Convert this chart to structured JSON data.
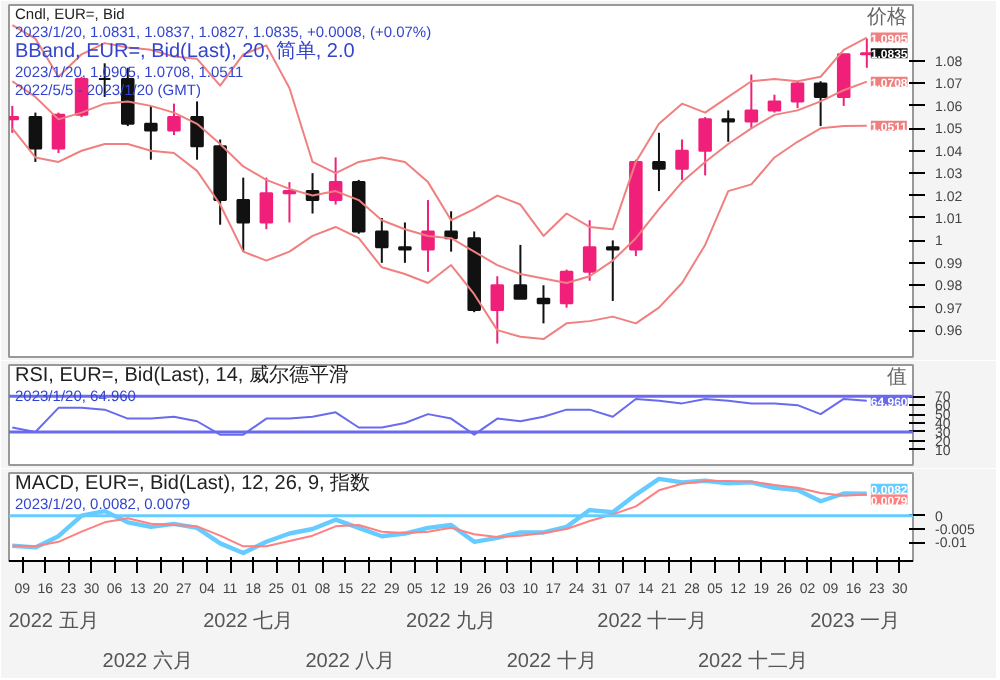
{
  "chart_data": [
    {
      "type": "candlestick",
      "title": "Cndl, EUR=, Bid",
      "subtitle": "2023/1/20, 1.0831, 1.0837, 1.0827, 1.0835, +0.0008, (+0.07%)",
      "ylabel": "价格",
      "annotations": [
        "BBand, EUR=, Bid(Last), 20, 简单, 2.0",
        "2023/1/20, 1.0905, 1.0708, 1.0511",
        "2022/5/5 - 2023/1/20 (GMT)",
        {
          "text": "1.0905",
          "x": "2023-01-20",
          "y": 1.0905
        },
        {
          "text": "1.0835",
          "x": "2023-01-20",
          "y": 1.0835
        },
        {
          "text": "1.0708",
          "x": "2023-01-20",
          "y": 1.0708
        },
        {
          "text": "1.0511",
          "x": "2023-01-20",
          "y": 1.0511
        }
      ],
      "x": [
        "2022-05-06",
        "2022-05-13",
        "2022-05-20",
        "2022-05-27",
        "2022-06-03",
        "2022-06-10",
        "2022-06-17",
        "2022-06-24",
        "2022-07-01",
        "2022-07-08",
        "2022-07-15",
        "2022-07-22",
        "2022-07-29",
        "2022-08-05",
        "2022-08-12",
        "2022-08-19",
        "2022-08-26",
        "2022-09-02",
        "2022-09-09",
        "2022-09-16",
        "2022-09-23",
        "2022-09-30",
        "2022-10-07",
        "2022-10-14",
        "2022-10-21",
        "2022-10-28",
        "2022-11-04",
        "2022-11-11",
        "2022-11-18",
        "2022-11-25",
        "2022-12-02",
        "2022-12-09",
        "2022-12-16",
        "2022-12-23",
        "2022-12-30",
        "2023-01-06",
        "2023-01-13",
        "2023-01-20"
      ],
      "ohlc": [
        [
          1.054,
          1.06,
          1.048,
          1.055
        ],
        [
          1.055,
          1.057,
          1.035,
          1.041
        ],
        [
          1.041,
          1.057,
          1.039,
          1.056
        ],
        [
          1.056,
          1.073,
          1.055,
          1.072
        ],
        [
          1.072,
          1.079,
          1.064,
          1.072
        ],
        [
          1.072,
          1.077,
          1.051,
          1.052
        ],
        [
          1.052,
          1.06,
          1.036,
          1.049
        ],
        [
          1.049,
          1.061,
          1.047,
          1.055
        ],
        [
          1.055,
          1.062,
          1.036,
          1.042
        ],
        [
          1.042,
          1.045,
          1.007,
          1.018
        ],
        [
          1.018,
          1.028,
          0.995,
          1.008
        ],
        [
          1.008,
          1.028,
          1.005,
          1.021
        ],
        [
          1.021,
          1.026,
          1.008,
          1.022
        ],
        [
          1.022,
          1.03,
          1.012,
          1.018
        ],
        [
          1.018,
          1.037,
          1.016,
          1.026
        ],
        [
          1.026,
          1.027,
          1.003,
          1.004
        ],
        [
          1.004,
          1.01,
          0.99,
          0.997
        ],
        [
          0.997,
          1.008,
          0.99,
          0.996
        ],
        [
          0.996,
          1.018,
          0.986,
          1.004
        ],
        [
          1.004,
          1.013,
          0.995,
          1.001
        ],
        [
          1.001,
          1.004,
          0.968,
          0.969
        ],
        [
          0.969,
          0.984,
          0.954,
          0.98
        ],
        [
          0.98,
          0.998,
          0.974,
          0.974
        ],
        [
          0.974,
          0.98,
          0.963,
          0.972
        ],
        [
          0.972,
          0.987,
          0.97,
          0.986
        ],
        [
          0.986,
          1.009,
          0.982,
          0.997
        ],
        [
          0.997,
          1.0,
          0.973,
          0.996
        ],
        [
          0.996,
          1.036,
          0.993,
          1.035
        ],
        [
          1.035,
          1.048,
          1.022,
          1.032
        ],
        [
          1.032,
          1.045,
          1.027,
          1.04
        ],
        [
          1.04,
          1.055,
          1.029,
          1.054
        ],
        [
          1.054,
          1.058,
          1.044,
          1.053
        ],
        [
          1.053,
          1.074,
          1.05,
          1.058
        ],
        [
          1.058,
          1.065,
          1.057,
          1.062
        ],
        [
          1.062,
          1.071,
          1.059,
          1.07
        ],
        [
          1.07,
          1.071,
          1.051,
          1.064
        ],
        [
          1.064,
          1.083,
          1.06,
          1.083
        ],
        [
          1.083,
          1.09,
          1.077,
          1.0835
        ]
      ],
      "colors": [
        "#f0207a",
        "#111111",
        "#f0207a",
        "#f0207a",
        "#111111",
        "#111111",
        "#111111",
        "#f0207a",
        "#111111",
        "#111111",
        "#111111",
        "#f0207a",
        "#f0207a",
        "#111111",
        "#f0207a",
        "#111111",
        "#111111",
        "#111111",
        "#f0207a",
        "#111111",
        "#111111",
        "#f0207a",
        "#111111",
        "#111111",
        "#f0207a",
        "#f0207a",
        "#111111",
        "#f0207a",
        "#111111",
        "#f0207a",
        "#f0207a",
        "#111111",
        "#f0207a",
        "#f0207a",
        "#f0207a",
        "#111111",
        "#f0207a",
        "#f0207a"
      ],
      "series": [
        {
          "type": "line",
          "color": "#f08080",
          "values": [
            1.096,
            1.09,
            1.073,
            1.083,
            1.088,
            1.086,
            1.085,
            1.082,
            1.081,
            1.069,
            1.083,
            1.087,
            1.068,
            1.035,
            1.03,
            1.035,
            1.037,
            1.035,
            1.026,
            1.009,
            1.014,
            1.02,
            1.016,
            1.002,
            1.012,
            1.006,
            1.005,
            1.035,
            1.052,
            1.061,
            1.057,
            1.064,
            1.071,
            1.072,
            1.071,
            1.073,
            1.085,
            1.0905
          ]
        },
        {
          "type": "line",
          "color": "#f08080",
          "values": [
            1.071,
            1.064,
            1.054,
            1.057,
            1.061,
            1.062,
            1.06,
            1.057,
            1.052,
            1.043,
            1.033,
            1.027,
            1.023,
            1.02,
            1.022,
            1.018,
            1.009,
            1.005,
            1.002,
            1.001,
            0.995,
            0.989,
            0.985,
            0.983,
            0.981,
            0.984,
            0.991,
            1.001,
            1.014,
            1.026,
            1.035,
            1.043,
            1.05,
            1.056,
            1.058,
            1.062,
            1.067,
            1.0708
          ]
        },
        {
          "type": "line",
          "color": "#f08080",
          "values": [
            1.05,
            1.037,
            1.035,
            1.04,
            1.043,
            1.043,
            1.04,
            1.039,
            1.031,
            1.016,
            0.995,
            0.991,
            0.995,
            1.002,
            1.006,
            1.001,
            0.988,
            0.985,
            0.981,
            0.989,
            0.976,
            0.96,
            0.957,
            0.956,
            0.963,
            0.964,
            0.966,
            0.963,
            0.97,
            0.981,
            0.998,
            1.022,
            1.025,
            1.037,
            1.044,
            1.05,
            1.051,
            1.0511
          ]
        }
      ],
      "xlim": [
        "2022-05-05",
        "2023-02-03"
      ],
      "ylim": [
        0.948,
        1.105
      ],
      "yticks": [
        0.96,
        0.97,
        0.98,
        0.99,
        1,
        1.01,
        1.02,
        1.03,
        1.04,
        1.05,
        1.06,
        1.07,
        1.08
      ],
      "tick_labels": "y",
      "grid": false
    },
    {
      "type": "line",
      "title": "RSI, EUR=, Bid(Last), 14, 威尔德平滑",
      "ylabel": "值",
      "subtitle": "2023/1/20, 64.960",
      "annotations": [
        {
          "text": "64.960",
          "x": "2023-01-20",
          "y": 64.96
        }
      ],
      "x": [
        "2022-05-06",
        "2022-05-13",
        "2022-05-20",
        "2022-05-27",
        "2022-06-03",
        "2022-06-10",
        "2022-06-17",
        "2022-06-24",
        "2022-07-01",
        "2022-07-08",
        "2022-07-15",
        "2022-07-22",
        "2022-07-29",
        "2022-08-05",
        "2022-08-12",
        "2022-08-19",
        "2022-08-26",
        "2022-09-02",
        "2022-09-09",
        "2022-09-16",
        "2022-09-23",
        "2022-09-30",
        "2022-10-07",
        "2022-10-14",
        "2022-10-21",
        "2022-10-28",
        "2022-11-04",
        "2022-11-11",
        "2022-11-18",
        "2022-11-25",
        "2022-12-02",
        "2022-12-09",
        "2022-12-16",
        "2022-12-23",
        "2022-12-30",
        "2023-01-06",
        "2023-01-13",
        "2023-01-20"
      ],
      "series": [
        {
          "color": "#6a6aee",
          "values": [
            35,
            30,
            57,
            57,
            55,
            45,
            45,
            47,
            42,
            27,
            27,
            45,
            45,
            47,
            52,
            35,
            35,
            40,
            50,
            45,
            27,
            45,
            42,
            47,
            55,
            55,
            47,
            67,
            65,
            62,
            67,
            65,
            62,
            62,
            60,
            50,
            67,
            64.96
          ]
        }
      ],
      "ref_lines": [
        {
          "axis": "y",
          "value": 70,
          "color": "#6a6aee"
        },
        {
          "axis": "y",
          "value": 30,
          "color": "#6a6aee"
        }
      ],
      "xlim": [
        "2022-05-05",
        "2023-02-03"
      ],
      "ylim": [
        -7,
        105
      ],
      "yticks": [
        10,
        20,
        30,
        40,
        50,
        60,
        70
      ],
      "tick_labels": "y",
      "grid": false
    },
    {
      "type": "line",
      "title": "MACD, EUR=, Bid(Last), 12, 26, 9, 指数",
      "subtitle": "2023/1/20, 0.0082, 0.0079",
      "annotations": [
        {
          "text": "0.0082",
          "x": "2023-01-20",
          "y": 0.0082
        },
        {
          "text": "0.0079",
          "x": "2023-01-20",
          "y": 0.0079
        },
        "2022 五月",
        "2022 六月",
        "2022 七月",
        "2022 八月",
        "2022 九月",
        "2022 十月",
        "2022 十一月",
        "2022 十二月",
        "2023 一月"
      ],
      "x": [
        "2022-05-06",
        "2022-05-13",
        "2022-05-20",
        "2022-05-27",
        "2022-06-03",
        "2022-06-10",
        "2022-06-17",
        "2022-06-24",
        "2022-07-01",
        "2022-07-08",
        "2022-07-15",
        "2022-07-22",
        "2022-07-29",
        "2022-08-05",
        "2022-08-12",
        "2022-08-19",
        "2022-08-26",
        "2022-09-02",
        "2022-09-09",
        "2022-09-16",
        "2022-09-23",
        "2022-09-30",
        "2022-10-07",
        "2022-10-14",
        "2022-10-21",
        "2022-10-28",
        "2022-11-04",
        "2022-11-11",
        "2022-11-18",
        "2022-11-25",
        "2022-12-02",
        "2022-12-09",
        "2022-12-16",
        "2022-12-23",
        "2022-12-30",
        "2023-01-06",
        "2023-01-13",
        "2023-01-20"
      ],
      "series": [
        {
          "color": "#66ccff",
          "values": [
            -0.0113,
            -0.0119,
            -0.0077,
            0.0,
            0.0017,
            -0.0025,
            -0.0042,
            -0.0031,
            -0.0046,
            -0.0104,
            -0.014,
            -0.0098,
            -0.0067,
            -0.005,
            -0.0015,
            -0.0046,
            -0.0077,
            -0.0067,
            -0.0046,
            -0.0035,
            -0.0098,
            -0.0083,
            -0.0063,
            -0.0063,
            -0.0042,
            0.0021,
            0.0013,
            0.0079,
            0.0138,
            0.0125,
            0.0131,
            0.0121,
            0.0125,
            0.0104,
            0.0096,
            0.0054,
            0.0083,
            0.0082
          ]
        },
        {
          "color": "#ff8080",
          "values": [
            -0.0113,
            -0.0115,
            -0.0098,
            -0.006,
            -0.0025,
            -0.001,
            -0.003,
            -0.0035,
            -0.004,
            -0.0075,
            -0.0115,
            -0.0115,
            -0.0095,
            -0.0075,
            -0.004,
            -0.0035,
            -0.006,
            -0.0065,
            -0.006,
            -0.0045,
            -0.007,
            -0.008,
            -0.0075,
            -0.0065,
            -0.005,
            -0.002,
            0.0005,
            0.0035,
            0.0095,
            0.012,
            0.013,
            0.013,
            0.0128,
            0.0115,
            0.0105,
            0.0085,
            0.0075,
            0.0079
          ]
        }
      ],
      "ref_lines": [
        {
          "axis": "y",
          "value": 0,
          "color": "#66ccff"
        }
      ],
      "xlim": [
        "2022-05-05",
        "2023-02-03"
      ],
      "ylim": [
        -0.017,
        0.016
      ],
      "yticks": [
        -0.01,
        -0.005,
        0
      ],
      "xticks": [
        {
          "value": "2022-05-09",
          "label": "09"
        },
        {
          "value": "2022-05-16",
          "label": "16"
        },
        {
          "value": "2022-05-23",
          "label": "23"
        },
        {
          "value": "2022-05-30",
          "label": "30"
        },
        {
          "value": "2022-06-06",
          "label": "06"
        },
        {
          "value": "2022-06-13",
          "label": "13"
        },
        {
          "value": "2022-06-20",
          "label": "20"
        },
        {
          "value": "2022-06-27",
          "label": "27"
        },
        {
          "value": "2022-07-04",
          "label": "04"
        },
        {
          "value": "2022-07-11",
          "label": "11"
        },
        {
          "value": "2022-07-18",
          "label": "18"
        },
        {
          "value": "2022-07-25",
          "label": "25"
        },
        {
          "value": "2022-08-01",
          "label": "01"
        },
        {
          "value": "2022-08-08",
          "label": "08"
        },
        {
          "value": "2022-08-15",
          "label": "15"
        },
        {
          "value": "2022-08-22",
          "label": "22"
        },
        {
          "value": "2022-08-29",
          "label": "29"
        },
        {
          "value": "2022-09-05",
          "label": "05"
        },
        {
          "value": "2022-09-12",
          "label": "12"
        },
        {
          "value": "2022-09-19",
          "label": "19"
        },
        {
          "value": "2022-09-26",
          "label": "26"
        },
        {
          "value": "2022-10-03",
          "label": "03"
        },
        {
          "value": "2022-10-10",
          "label": "10"
        },
        {
          "value": "2022-10-17",
          "label": "17"
        },
        {
          "value": "2022-10-24",
          "label": "24"
        },
        {
          "value": "2022-10-31",
          "label": "31"
        },
        {
          "value": "2022-11-07",
          "label": "07"
        },
        {
          "value": "2022-11-14",
          "label": "14"
        },
        {
          "value": "2022-11-21",
          "label": "21"
        },
        {
          "value": "2022-11-28",
          "label": "28"
        },
        {
          "value": "2022-12-05",
          "label": "05"
        },
        {
          "value": "2022-12-12",
          "label": "12"
        },
        {
          "value": "2022-12-19",
          "label": "19"
        },
        {
          "value": "2022-12-26",
          "label": "26"
        },
        {
          "value": "2023-01-02",
          "label": "02"
        },
        {
          "value": "2023-01-09",
          "label": "09"
        },
        {
          "value": "2023-01-16",
          "label": "16"
        },
        {
          "value": "2023-01-23",
          "label": "23"
        },
        {
          "value": "2023-01-30",
          "label": "30"
        }
      ],
      "grid": false
    }
  ]
}
